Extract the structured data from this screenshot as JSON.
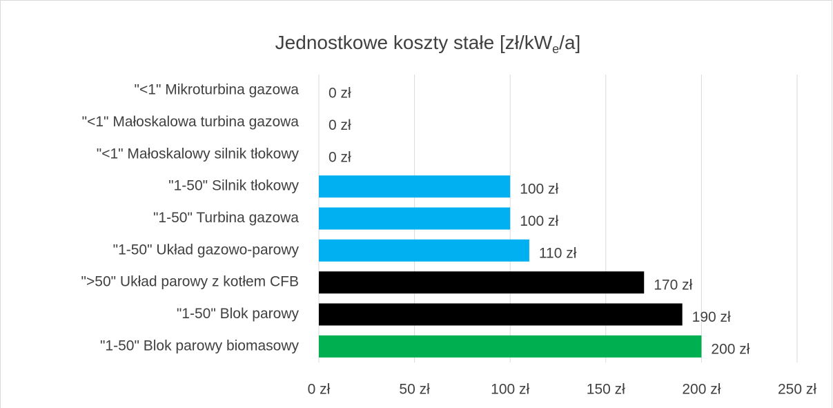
{
  "chart_data": {
    "type": "bar",
    "orientation": "horizontal",
    "title": "Jednostkowe koszty stałe [zł/kW",
    "title_subscript": "e",
    "title_suffix": "/a]",
    "categories": [
      "\"<1\" Mikroturbina gazowa",
      "\"<1\" Małoskalowa turbina gazowa",
      "\"<1\" Małoskalowy silnik tłokowy",
      "\"1-50\" Silnik tłokowy",
      "\"1-50\" Turbina gazowa",
      "\"1-50\" Układ gazowo-parowy",
      "\">50\" Układ parowy z kotłem CFB",
      "\"1-50\" Blok parowy",
      "\"1-50\" Blok parowy biomasowy"
    ],
    "values": [
      0,
      0,
      0,
      100,
      100,
      110,
      170,
      190,
      200
    ],
    "value_labels": [
      "0 zł",
      "0 zł",
      "0 zł",
      "100 zł",
      "100 zł",
      "110 zł",
      "170 zł",
      "190 zł",
      "200 zł"
    ],
    "colors": [
      "#00b0f0",
      "#00b0f0",
      "#00b0f0",
      "#00b0f0",
      "#00b0f0",
      "#00b0f0",
      "#000000",
      "#000000",
      "#00b050"
    ],
    "xlim": [
      0,
      250
    ],
    "xticks": [
      {
        "value": 0,
        "label": "0 zł"
      },
      {
        "value": 50,
        "label": "50 zł"
      },
      {
        "value": 100,
        "label": "100 zł"
      },
      {
        "value": 150,
        "label": "150 zł"
      },
      {
        "value": 200,
        "label": "200 zł"
      },
      {
        "value": 250,
        "label": "250 zł"
      }
    ],
    "grid": true
  }
}
